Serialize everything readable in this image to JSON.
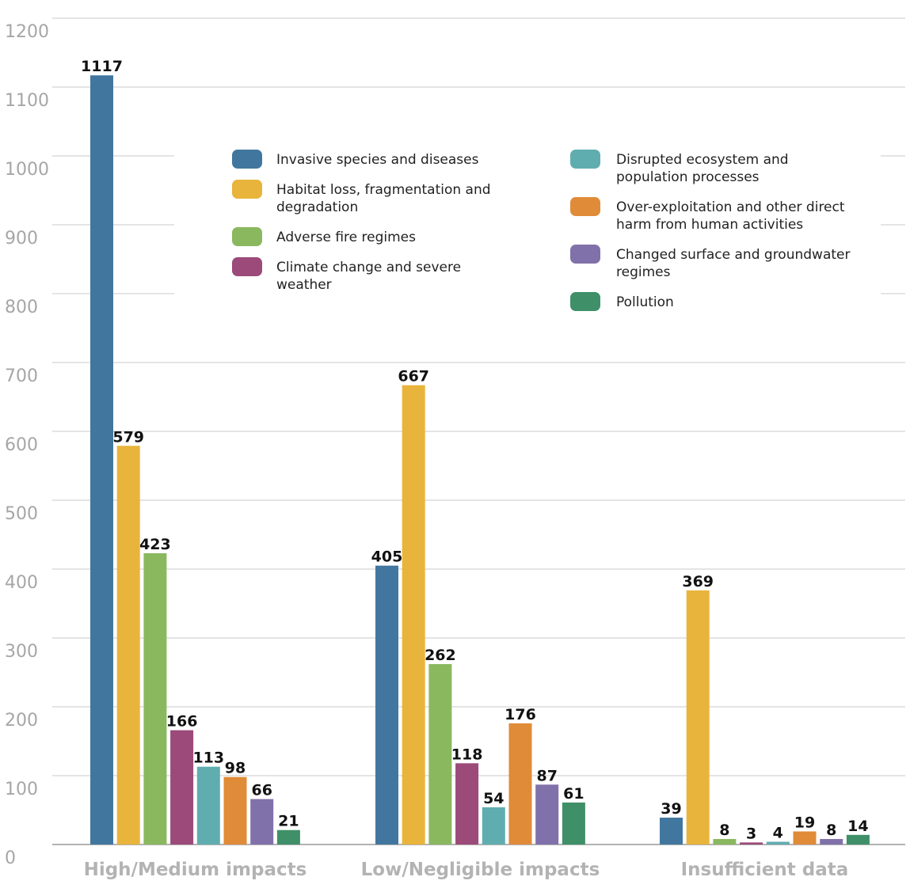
{
  "chart_data": {
    "type": "bar",
    "title": "",
    "xlabel": "",
    "ylabel": "",
    "ylim": [
      0,
      1200
    ],
    "yticks": [
      0,
      100,
      200,
      300,
      400,
      500,
      600,
      700,
      800,
      900,
      1000,
      1100,
      1200
    ],
    "grid": true,
    "legend_position": "top-right",
    "categories": [
      "High/Medium impacts",
      "Low/Negligible impacts",
      "Insufficient data"
    ],
    "series": [
      {
        "name": "Invasive species and diseases",
        "color": "#41779e",
        "values": [
          1117,
          405,
          39
        ]
      },
      {
        "name": "Habitat loss, fragmentation and degradation",
        "color": "#e8b43b",
        "values": [
          579,
          667,
          369
        ]
      },
      {
        "name": "Adverse fire regimes",
        "color": "#8ab85f",
        "values": [
          423,
          262,
          8
        ]
      },
      {
        "name": "Climate change and severe weather",
        "color": "#9b4a79",
        "values": [
          166,
          118,
          3
        ]
      },
      {
        "name": "Disrupted ecosystem and population processes",
        "color": "#60adb0",
        "values": [
          113,
          54,
          4
        ]
      },
      {
        "name": "Over-exploitation and other direct harm from human activities",
        "color": "#e08b38",
        "values": [
          98,
          176,
          19
        ]
      },
      {
        "name": "Changed surface and groundwater regimes",
        "color": "#8171aa",
        "values": [
          66,
          87,
          8
        ]
      },
      {
        "name": "Pollution",
        "color": "#3f9068",
        "values": [
          21,
          61,
          14
        ]
      }
    ],
    "legend": {
      "left": [
        [
          "Invasive species and diseases"
        ],
        [
          "Habitat loss, fragmentation and",
          "degradation"
        ],
        [
          "Adverse fire regimes"
        ],
        [
          "Climate change and severe",
          "weather"
        ]
      ],
      "right": [
        [
          "Disrupted ecosystem and",
          "population processes"
        ],
        [
          "Over-exploitation and other direct",
          "harm from human activities"
        ],
        [
          "Changed surface and groundwater",
          "regimes"
        ],
        [
          "Pollution"
        ]
      ]
    }
  }
}
